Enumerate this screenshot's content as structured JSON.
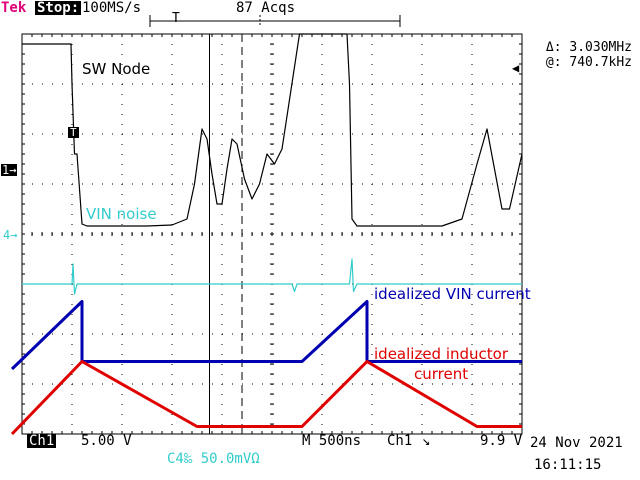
{
  "header": {
    "brand": "Tek",
    "run_state": "Stop:",
    "sample_rate": "100MS/s",
    "acquisitions": "87 Acqs"
  },
  "measurements": {
    "delta_freq": "Δ: 3.030MHz",
    "at_freq": "@: 740.7kHz"
  },
  "markers": {
    "trigger_pos": "T",
    "trigger_level": "T",
    "ch1_ground": "1→",
    "ch4_ground": "4→"
  },
  "channels": {
    "ch1_label": "Ch1",
    "ch1_scale": "5.00 V",
    "ch4_setting": "C4‰  50.0mVΩ"
  },
  "timebase": {
    "label": "M  500ns",
    "trigger_source": "Ch1",
    "trigger_slope": "↘",
    "trigger_voltage": "9.9 V"
  },
  "timestamp": {
    "date": "24 Nov 2021",
    "time": "16:11:15"
  },
  "annotations": {
    "sw_node": "SW Node",
    "vin_noise": "VIN noise",
    "vin_current": "idealized VIN current",
    "inductor_line1": "idealized inductor",
    "inductor_line2": "current"
  },
  "colors": {
    "trace_ch1": "#000000",
    "trace_ch4": "#33cccc",
    "vin_current": "#0000b0",
    "inductor_current": "#e00000",
    "brand": "#e0007a"
  },
  "chart_data": {
    "type": "line",
    "x_unit": "divisions",
    "xlim": [
      0,
      10
    ],
    "ylim": [
      -4,
      4
    ],
    "grid": true,
    "cursors": {
      "type": "vertical",
      "solid_div": 3.75,
      "dashed_div": 4.4
    },
    "series": [
      {
        "name": "SW Node",
        "color": "#000000",
        "points": [
          [
            0.0,
            3.8
          ],
          [
            0.98,
            3.8
          ],
          [
            1.0,
            3.0
          ],
          [
            1.05,
            1.6
          ],
          [
            1.1,
            1.6
          ],
          [
            1.2,
            0.2
          ],
          [
            1.3,
            0.16
          ],
          [
            2.5,
            0.16
          ],
          [
            3.0,
            0.18
          ],
          [
            3.3,
            0.3
          ],
          [
            3.45,
            1.0
          ],
          [
            3.6,
            2.1
          ],
          [
            3.7,
            1.9
          ],
          [
            3.8,
            1.2
          ],
          [
            3.9,
            0.6
          ],
          [
            4.0,
            0.6
          ],
          [
            4.1,
            1.3
          ],
          [
            4.2,
            1.9
          ],
          [
            4.3,
            1.8
          ],
          [
            4.45,
            1.1
          ],
          [
            4.6,
            0.7
          ],
          [
            4.75,
            1.0
          ],
          [
            4.9,
            1.6
          ],
          [
            5.05,
            1.4
          ],
          [
            5.2,
            1.7
          ],
          [
            5.55,
            4.0
          ],
          [
            6.5,
            4.0
          ],
          [
            6.55,
            3.0
          ],
          [
            6.6,
            0.3
          ],
          [
            6.7,
            0.16
          ],
          [
            8.4,
            0.16
          ],
          [
            8.8,
            0.3
          ],
          [
            9.1,
            1.4
          ],
          [
            9.3,
            2.1
          ],
          [
            9.45,
            1.3
          ],
          [
            9.6,
            0.5
          ],
          [
            9.75,
            0.5
          ],
          [
            10.0,
            1.6
          ]
        ]
      },
      {
        "name": "VIN noise",
        "color": "#33cccc",
        "points": [
          [
            0.0,
            -1.0
          ],
          [
            1.0,
            -1.0
          ],
          [
            1.02,
            -0.6
          ],
          [
            1.05,
            -1.2
          ],
          [
            1.1,
            -1.0
          ],
          [
            5.4,
            -1.0
          ],
          [
            5.45,
            -1.15
          ],
          [
            5.5,
            -1.0
          ],
          [
            6.55,
            -1.0
          ],
          [
            6.6,
            -0.5
          ],
          [
            6.63,
            -1.15
          ],
          [
            6.7,
            -1.0
          ],
          [
            10.0,
            -1.0
          ]
        ]
      },
      {
        "name": "idealized VIN current",
        "color": "#0000b0",
        "points": [
          [
            -0.2,
            -2.7
          ],
          [
            1.2,
            -1.35
          ],
          [
            1.2,
            -2.55
          ],
          [
            5.6,
            -2.55
          ],
          [
            6.9,
            -1.35
          ],
          [
            6.9,
            -2.55
          ],
          [
            10.0,
            -2.55
          ]
        ]
      },
      {
        "name": "idealized inductor current",
        "color": "#e00000",
        "points": [
          [
            -0.2,
            -4.0
          ],
          [
            1.2,
            -2.55
          ],
          [
            3.5,
            -3.85
          ],
          [
            5.6,
            -3.85
          ],
          [
            6.9,
            -2.55
          ],
          [
            9.1,
            -3.85
          ],
          [
            10.0,
            -3.85
          ]
        ]
      }
    ]
  }
}
